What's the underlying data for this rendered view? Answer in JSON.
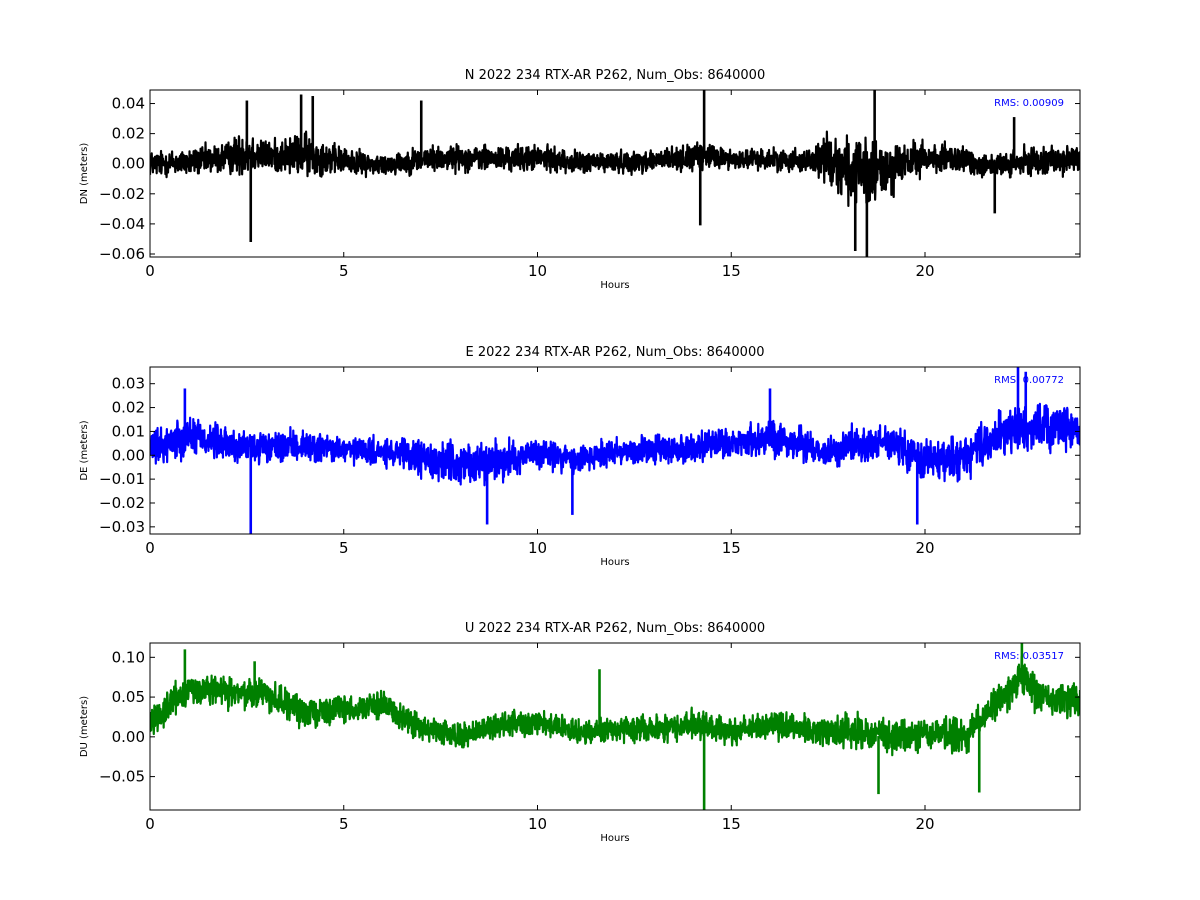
{
  "chart_data": [
    {
      "type": "line",
      "title": "N 2022 234 RTX-AR  P262, Num_Obs: 8640000",
      "xlabel": "Hours",
      "ylabel": "DN (meters)",
      "xlim": [
        0,
        24
      ],
      "ylim": [
        -0.062,
        0.049
      ],
      "xticks": [
        "0",
        "5",
        "10",
        "15",
        "20"
      ],
      "xtick_values": [
        0,
        5,
        10,
        15,
        20
      ],
      "yticks": [
        "0.04",
        "0.02",
        "0.00",
        "−0.02",
        "−0.04",
        "−0.06"
      ],
      "ytick_values": [
        0.04,
        0.02,
        0.0,
        -0.02,
        -0.04,
        -0.06
      ],
      "annotation": "RMS:  0.00909",
      "color": "#000000",
      "annotation_color": "#0000ff",
      "grid": false,
      "series": [
        {
          "x": [
            0,
            1,
            2,
            2.5,
            3,
            4,
            5,
            6,
            7,
            8,
            9,
            10,
            11,
            12,
            13,
            14,
            14.5,
            15,
            16,
            17,
            17.5,
            18,
            18.5,
            19,
            20,
            21,
            22,
            23,
            24
          ],
          "mean": [
            0,
            0.001,
            0.004,
            0.008,
            0.005,
            0.006,
            0.002,
            -0.001,
            0.003,
            0.004,
            0.003,
            0.004,
            0.001,
            0.001,
            0.002,
            0.004,
            0.005,
            0.003,
            0.003,
            0.002,
            0.004,
            -0.004,
            -0.008,
            -0.004,
            0.004,
            0.002,
            -0.002,
            0.003,
            0.002
          ],
          "amp": [
            0.012,
            0.013,
            0.015,
            0.022,
            0.014,
            0.02,
            0.012,
            0.01,
            0.012,
            0.012,
            0.012,
            0.012,
            0.01,
            0.01,
            0.011,
            0.012,
            0.013,
            0.009,
            0.01,
            0.011,
            0.024,
            0.03,
            0.032,
            0.026,
            0.015,
            0.013,
            0.012,
            0.013,
            0.013
          ],
          "spikes": [
            [
              2.6,
              -0.052
            ],
            [
              2.5,
              0.042
            ],
            [
              3.9,
              0.046
            ],
            [
              4.2,
              0.045
            ],
            [
              7.0,
              0.042
            ],
            [
              14.3,
              0.049
            ],
            [
              14.2,
              -0.041
            ],
            [
              18.7,
              0.049
            ],
            [
              18.5,
              -0.062
            ],
            [
              18.2,
              -0.058
            ],
            [
              21.8,
              -0.033
            ],
            [
              22.3,
              0.031
            ]
          ]
        }
      ]
    },
    {
      "type": "line",
      "title": "E 2022 234 RTX-AR  P262, Num_Obs: 8640000",
      "xlabel": "Hours",
      "ylabel": "DE (meters)",
      "xlim": [
        0,
        24
      ],
      "ylim": [
        -0.033,
        0.037
      ],
      "xticks": [
        "0",
        "5",
        "10",
        "15",
        "20"
      ],
      "xtick_values": [
        0,
        5,
        10,
        15,
        20
      ],
      "yticks": [
        "0.03",
        "0.02",
        "0.01",
        "0.00",
        "−0.01",
        "−0.02",
        "−0.03"
      ],
      "ytick_values": [
        0.03,
        0.02,
        0.01,
        0.0,
        -0.01,
        -0.02,
        -0.03
      ],
      "annotation": "RMS:  0.00772",
      "color": "#0000ff",
      "annotation_color": "#0000ff",
      "grid": false,
      "series": [
        {
          "x": [
            0,
            1,
            2,
            3,
            4,
            5,
            6,
            7,
            8,
            9,
            10,
            11,
            12,
            13,
            14,
            15,
            16,
            17,
            17.5,
            18,
            19,
            20,
            21,
            22,
            23,
            24
          ],
          "mean": [
            0.002,
            0.009,
            0.004,
            0.003,
            0.004,
            0.002,
            0.001,
            -0.001,
            -0.004,
            -0.002,
            0.001,
            -0.002,
            0.002,
            0.002,
            0.003,
            0.005,
            0.007,
            0.004,
            0.001,
            0.004,
            0.006,
            -0.002,
            -0.001,
            0.009,
            0.012,
            0.011
          ],
          "amp": [
            0.01,
            0.012,
            0.01,
            0.009,
            0.009,
            0.008,
            0.008,
            0.011,
            0.012,
            0.011,
            0.009,
            0.009,
            0.009,
            0.009,
            0.009,
            0.009,
            0.011,
            0.009,
            0.008,
            0.01,
            0.01,
            0.012,
            0.012,
            0.013,
            0.014,
            0.013
          ],
          "spikes": [
            [
              2.6,
              -0.033
            ],
            [
              8.7,
              -0.029
            ],
            [
              10.9,
              -0.025
            ],
            [
              16.0,
              0.028
            ],
            [
              19.8,
              -0.029
            ],
            [
              22.4,
              0.037
            ],
            [
              22.6,
              0.035
            ],
            [
              0.9,
              0.028
            ]
          ]
        }
      ]
    },
    {
      "type": "line",
      "title": "U 2022 234 RTX-AR  P262, Num_Obs: 8640000",
      "xlabel": "Hours",
      "ylabel": "DU (meters)",
      "xlim": [
        0,
        24
      ],
      "ylim": [
        -0.092,
        0.118
      ],
      "xticks": [
        "0",
        "5",
        "10",
        "15",
        "20"
      ],
      "xtick_values": [
        0,
        5,
        10,
        15,
        20
      ],
      "yticks": [
        "0.10",
        "0.05",
        "0.00",
        "−0.05"
      ],
      "ytick_values": [
        0.1,
        0.05,
        0.0,
        -0.05
      ],
      "annotation": "RMS:  0.03517",
      "color": "#008000",
      "annotation_color": "#0000ff",
      "grid": false,
      "series": [
        {
          "x": [
            0,
            1,
            2,
            3,
            4,
            5,
            6,
            7,
            8,
            9,
            10,
            11,
            12,
            13,
            14,
            15,
            16,
            17,
            18,
            19,
            20,
            21,
            22,
            22.5,
            23,
            24
          ],
          "mean": [
            0.02,
            0.06,
            0.055,
            0.055,
            0.03,
            0.035,
            0.04,
            0.01,
            0.0,
            0.015,
            0.02,
            0.005,
            0.01,
            0.01,
            0.015,
            0.005,
            0.015,
            0.01,
            0.005,
            0.0,
            0.005,
            0.0,
            0.05,
            0.075,
            0.05,
            0.045
          ],
          "amp": [
            0.025,
            0.03,
            0.025,
            0.028,
            0.025,
            0.022,
            0.025,
            0.022,
            0.02,
            0.022,
            0.022,
            0.02,
            0.022,
            0.022,
            0.025,
            0.025,
            0.025,
            0.022,
            0.03,
            0.035,
            0.03,
            0.03,
            0.03,
            0.035,
            0.03,
            0.03
          ],
          "spikes": [
            [
              14.3,
              -0.092
            ],
            [
              11.6,
              0.085
            ],
            [
              18.8,
              -0.072
            ],
            [
              22.5,
              0.118
            ],
            [
              21.4,
              -0.07
            ],
            [
              2.7,
              0.095
            ],
            [
              0.9,
              0.11
            ]
          ]
        }
      ]
    }
  ]
}
